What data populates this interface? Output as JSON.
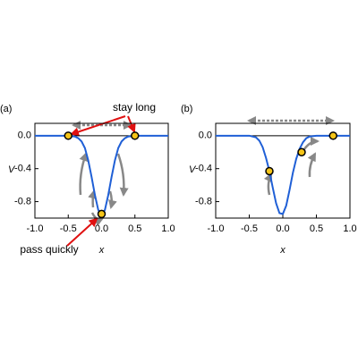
{
  "chart_data": [
    {
      "type": "line",
      "title": "(a)",
      "xlabel": "x",
      "ylabel": "V",
      "x": [
        -1.0,
        -0.5,
        -0.4,
        -0.35,
        -0.3,
        -0.25,
        -0.2,
        -0.15,
        -0.1,
        -0.05,
        0,
        0.05,
        0.1,
        0.15,
        0.2,
        0.25,
        0.3,
        0.35,
        0.4,
        0.5,
        1.0
      ],
      "series": [
        {
          "color": "#1f5fd6",
          "values": [
            0,
            0,
            -0.01,
            -0.03,
            -0.07,
            -0.15,
            -0.3,
            -0.5,
            -0.72,
            -0.9,
            -0.97,
            -0.9,
            -0.72,
            -0.5,
            -0.3,
            -0.15,
            -0.07,
            -0.03,
            -0.01,
            0,
            0
          ]
        }
      ],
      "points": {
        "x": [
          -0.5,
          0.5,
          0
        ],
        "values": [
          0,
          0,
          -0.95
        ],
        "color": "#f5c518"
      },
      "annotations": [
        "stay long",
        "pass quickly"
      ],
      "xlim": [
        -1.0,
        1.0
      ],
      "ylim": [
        -1.0,
        0.15
      ],
      "xticks": [
        {
          "value": -1.0,
          "label": "-1.0"
        },
        -0.5,
        {
          "value": 0,
          "label": "0.0"
        },
        0.5,
        {
          "value": 1.0,
          "label": "1.0"
        }
      ],
      "yticks": [
        {
          "value": 0,
          "label": "0.0"
        },
        -0.4,
        -0.8
      ]
    },
    {
      "type": "line",
      "title": "(b)",
      "xlabel": "x",
      "ylabel": "V",
      "x": [
        -1.0,
        -0.5,
        -0.4,
        -0.35,
        -0.3,
        -0.25,
        -0.2,
        -0.15,
        -0.1,
        -0.05,
        0,
        0.05,
        0.1,
        0.15,
        0.2,
        0.25,
        0.3,
        0.35,
        0.4,
        0.5,
        1.0
      ],
      "series": [
        {
          "color": "#1f5fd6",
          "values": [
            0,
            0,
            -0.02,
            -0.06,
            -0.14,
            -0.27,
            -0.43,
            -0.63,
            -0.82,
            -0.94,
            -0.95,
            -0.85,
            -0.66,
            -0.45,
            -0.28,
            -0.16,
            -0.08,
            -0.03,
            -0.01,
            0,
            0
          ]
        }
      ],
      "points": {
        "x": [
          -0.2,
          0.28,
          0.75
        ],
        "values": [
          -0.43,
          -0.2,
          0
        ],
        "color": "#f5c518"
      },
      "xlim": [
        -1.0,
        1.0
      ],
      "ylim": [
        -1.0,
        0.15
      ],
      "xticks": [
        {
          "value": -1.0,
          "label": "-1.0"
        },
        -0.5,
        {
          "value": 0,
          "label": "0.0"
        },
        0.5,
        {
          "value": 1.0,
          "label": "1.0"
        }
      ],
      "yticks": [
        {
          "value": 0,
          "label": "0.0"
        },
        -0.4,
        -0.8
      ]
    }
  ]
}
